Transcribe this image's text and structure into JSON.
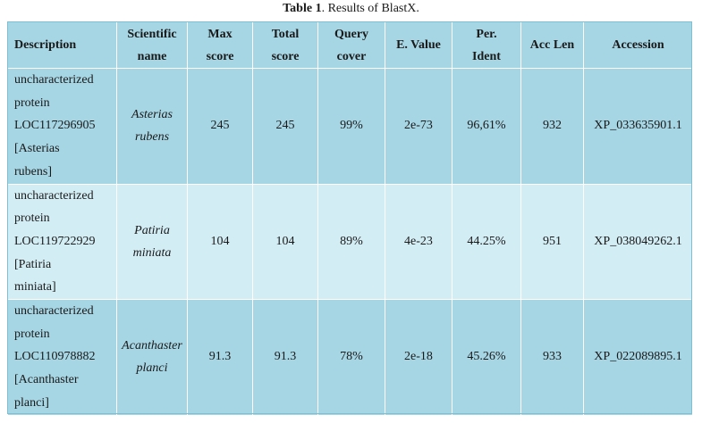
{
  "caption": {
    "label": "Table 1",
    "text": ". Results of BlastX."
  },
  "columns": [
    {
      "line1": "Description",
      "line2": ""
    },
    {
      "line1": "Scientific",
      "line2": "name"
    },
    {
      "line1": "Max",
      "line2": "score"
    },
    {
      "line1": "Total",
      "line2": "score"
    },
    {
      "line1": "Query",
      "line2": "cover"
    },
    {
      "line1": "E. Value",
      "line2": ""
    },
    {
      "line1": "Per.",
      "line2": "Ident"
    },
    {
      "line1": "Acc Len",
      "line2": ""
    },
    {
      "line1": "Accession",
      "line2": ""
    }
  ],
  "rows": [
    {
      "description_lines": [
        "uncharacterized",
        "protein",
        "LOC117296905",
        "[Asterias",
        "rubens]"
      ],
      "scientific_name_lines": [
        "Asterias",
        "rubens"
      ],
      "max_score": "245",
      "total_score": "245",
      "query_cover": "99%",
      "e_value": "2e-73",
      "per_ident": "96,61%",
      "acc_len": "932",
      "accession": "XP_033635901.1"
    },
    {
      "description_lines": [
        "uncharacterized",
        "protein",
        "LOC119722929",
        "[Patiria",
        "miniata]"
      ],
      "scientific_name_lines": [
        "Patiria",
        "miniata"
      ],
      "max_score": "104",
      "total_score": "104",
      "query_cover": "89%",
      "e_value": "4e-23",
      "per_ident": "44.25%",
      "acc_len": "951",
      "accession": "XP_038049262.1"
    },
    {
      "description_lines": [
        "uncharacterized",
        "protein",
        "LOC110978882",
        "[Acanthaster",
        "planci]"
      ],
      "scientific_name_lines": [
        "Acanthaster",
        "planci"
      ],
      "max_score": "91.3",
      "total_score": "91.3",
      "query_cover": "78%",
      "e_value": "2e-18",
      "per_ident": "45.26%",
      "acc_len": "933",
      "accession": "XP_022089895.1"
    }
  ],
  "colors": {
    "header_bg": "#a6d5e4",
    "row_dark_bg": "#a6d5e4",
    "row_light_bg": "#d3edf5",
    "grid_line": "#ffffff"
  }
}
